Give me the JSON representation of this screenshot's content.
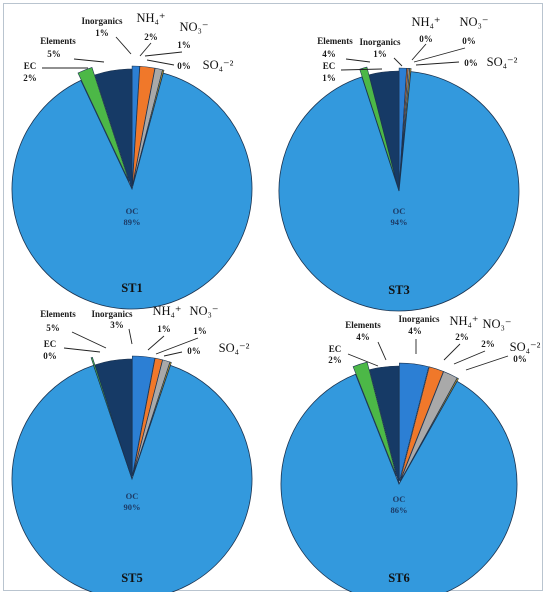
{
  "chart_data": [
    {
      "type": "pie",
      "title": "ST1",
      "categories": [
        "Inorganics",
        "NH4+",
        "NO3-",
        "SO4-2",
        "Elements",
        "EC",
        "OC"
      ],
      "series": [
        {
          "labels": [
            "1%",
            "2%",
            "1%",
            "0%",
            "5%",
            "2%",
            "89%"
          ],
          "values": [
            1,
            2,
            1,
            0,
            5,
            2,
            89
          ]
        }
      ]
    },
    {
      "type": "pie",
      "title": "ST3",
      "categories": [
        "Inorganics",
        "NH4+",
        "NO3-",
        "SO4-2",
        "Elements",
        "EC",
        "OC"
      ],
      "series": [
        {
          "labels": [
            "1%",
            "0%",
            "0%",
            "0%",
            "4%",
            "1%",
            "94%"
          ],
          "values": [
            1,
            0,
            0,
            0,
            4,
            1,
            94
          ]
        }
      ]
    },
    {
      "type": "pie",
      "title": "ST5",
      "categories": [
        "Inorganics",
        "NH4+",
        "NO3-",
        "SO4-2",
        "Elements",
        "EC",
        "OC"
      ],
      "series": [
        {
          "labels": [
            "3%",
            "1%",
            "1%",
            "0%",
            "5%",
            "0%",
            "90%"
          ],
          "values": [
            3,
            1,
            1,
            0,
            5,
            0,
            90
          ]
        }
      ]
    },
    {
      "type": "pie",
      "title": "ST6",
      "categories": [
        "Inorganics",
        "NH4+",
        "NO3-",
        "SO4-2",
        "Elements",
        "EC",
        "OC"
      ],
      "series": [
        {
          "labels": [
            "4%",
            "2%",
            "2%",
            "0%",
            "4%",
            "2%",
            "86%"
          ],
          "values": [
            4,
            2,
            2,
            0,
            4,
            2,
            86
          ]
        }
      ]
    }
  ],
  "colors": {
    "Inorganics": "#2c7fd4",
    "NH4+": "#f0782a",
    "NO3-": "#a9a9a9",
    "SO4-2": "#c8a020",
    "Elements": "#163a66",
    "EC": "#4cb847",
    "OC": "#3399dd"
  },
  "display_names": {
    "Inorganics": "Inorganics",
    "NH4+": "NH₄⁺",
    "NO3-": "NO₃⁻",
    "SO4-2": "SO₄⁻²",
    "Elements": "Elements",
    "EC": "EC",
    "OC": "OC"
  }
}
